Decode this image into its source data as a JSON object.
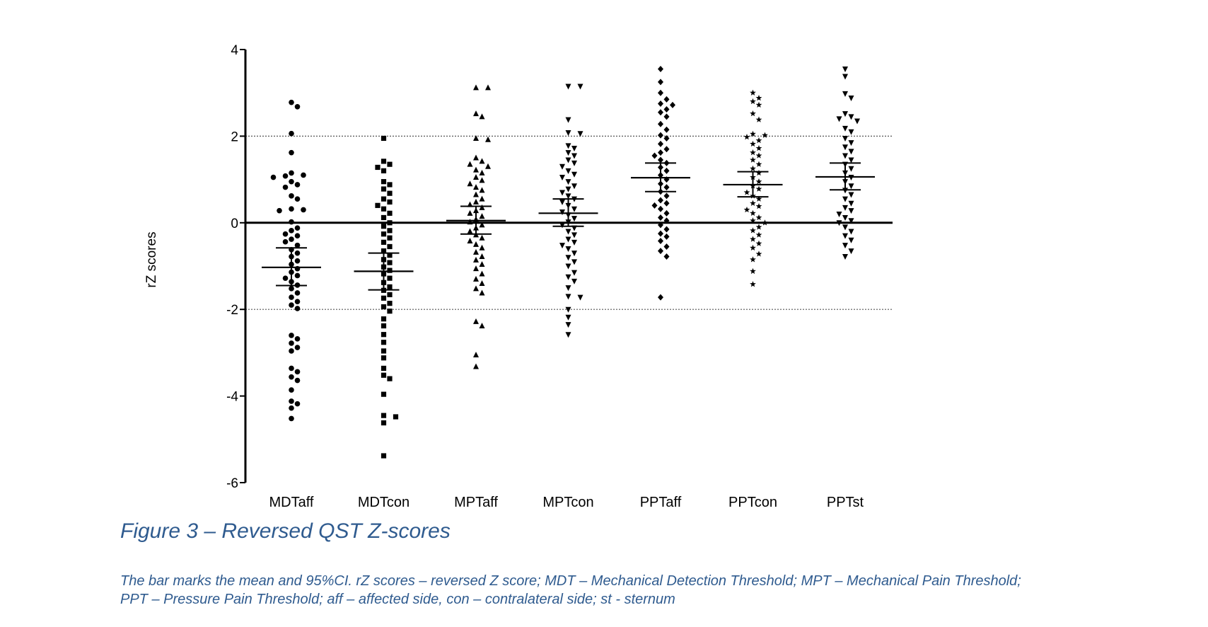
{
  "figure": {
    "title": "Figure 3 – Reversed QST Z-scores",
    "caption_line1": "The bar marks the mean and 95%CI. rZ scores – reversed Z score; MDT – Mechanical Detection Threshold; MPT – Mechanical Pain Threshold;",
    "caption_line2": "PPT – Pressure Pain Threshold; aff – affected side, con – contralateral side; st - sternum"
  },
  "chart_data": {
    "type": "scatter",
    "ylabel": "rZ scores",
    "ylim": [
      -6,
      4
    ],
    "yticks": [
      4,
      2,
      0,
      -2,
      -4,
      -6
    ],
    "reference_lines": {
      "solid": [
        0
      ],
      "dotted": [
        2,
        -2
      ]
    },
    "categories": [
      "MDTaff",
      "MDTcon",
      "MPTaff",
      "MPTcon",
      "PPTaff",
      "PPTcon",
      "PPTst"
    ],
    "marker_color": "#000000",
    "series": [
      {
        "category": "MDTaff",
        "marker": "circle",
        "mean": -1.03,
        "ci": [
          -1.45,
          -0.58
        ],
        "values": [
          2.78,
          2.68,
          2.06,
          1.62,
          1.15,
          1.1,
          1.08,
          1.05,
          0.95,
          0.88,
          0.82,
          0.62,
          0.55,
          0.32,
          0.3,
          0.28,
          0.02,
          -0.12,
          -0.18,
          -0.26,
          -0.3,
          -0.38,
          -0.44,
          -0.52,
          -0.62,
          -0.7,
          -0.78,
          -0.88,
          -0.96,
          -1.06,
          -1.14,
          -1.22,
          -1.28,
          -1.36,
          -1.44,
          -1.52,
          -1.62,
          -1.72,
          -1.82,
          -1.9,
          -1.98,
          -2.6,
          -2.68,
          -2.78,
          -2.88,
          -2.96,
          -3.36,
          -3.44,
          -3.56,
          -3.64,
          -3.86,
          -4.12,
          -4.18,
          -4.28,
          -4.52
        ]
      },
      {
        "category": "MDTcon",
        "marker": "square",
        "mean": -1.12,
        "ci": [
          -1.55,
          -0.7
        ],
        "values": [
          1.95,
          1.42,
          1.35,
          1.28,
          1.2,
          0.95,
          0.88,
          0.78,
          0.68,
          0.55,
          0.48,
          0.4,
          0.32,
          0.22,
          0.12,
          0.0,
          -0.08,
          -0.18,
          -0.26,
          -0.35,
          -0.45,
          -0.55,
          -0.65,
          -0.75,
          -0.85,
          -0.92,
          -1.02,
          -1.1,
          -1.18,
          -1.28,
          -1.38,
          -1.48,
          -1.56,
          -1.66,
          -1.74,
          -1.86,
          -1.94,
          -2.04,
          -2.22,
          -2.38,
          -2.58,
          -2.76,
          -2.96,
          -3.12,
          -3.36,
          -3.52,
          -3.6,
          -3.96,
          -4.45,
          -4.48,
          -4.62,
          -5.38
        ]
      },
      {
        "category": "MPTaff",
        "marker": "triangle-up",
        "mean": 0.05,
        "ci": [
          -0.26,
          0.38
        ],
        "values": [
          3.12,
          3.12,
          2.52,
          2.45,
          1.95,
          1.92,
          1.5,
          1.42,
          1.35,
          1.3,
          1.22,
          1.15,
          1.05,
          0.98,
          0.9,
          0.82,
          0.75,
          0.65,
          0.55,
          0.48,
          0.42,
          0.35,
          0.28,
          0.22,
          0.15,
          0.08,
          0.02,
          -0.05,
          -0.12,
          -0.2,
          -0.28,
          -0.35,
          -0.42,
          -0.5,
          -0.58,
          -0.68,
          -0.78,
          -0.86,
          -0.96,
          -1.06,
          -1.18,
          -1.3,
          -1.4,
          -1.52,
          -1.62,
          -2.28,
          -2.38,
          -3.05,
          -3.32
        ]
      },
      {
        "category": "MPTcon",
        "marker": "triangle-down",
        "mean": 0.22,
        "ci": [
          -0.08,
          0.55
        ],
        "values": [
          3.15,
          3.15,
          2.38,
          2.08,
          2.06,
          1.78,
          1.72,
          1.62,
          1.55,
          1.45,
          1.38,
          1.3,
          1.2,
          1.12,
          1.05,
          0.95,
          0.85,
          0.78,
          0.7,
          0.62,
          0.55,
          0.48,
          0.4,
          0.32,
          0.25,
          0.18,
          0.1,
          0.02,
          -0.05,
          -0.12,
          -0.2,
          -0.28,
          -0.38,
          -0.45,
          -0.52,
          -0.6,
          -0.7,
          -0.8,
          -0.9,
          -1.0,
          -1.15,
          -1.25,
          -1.35,
          -1.5,
          -1.7,
          -1.72,
          -2.0,
          -2.18,
          -2.35,
          -2.58
        ]
      },
      {
        "category": "PPTaff",
        "marker": "diamond",
        "mean": 1.04,
        "ci": [
          0.72,
          1.38
        ],
        "values": [
          3.55,
          3.25,
          3.0,
          2.85,
          2.75,
          2.72,
          2.62,
          2.55,
          2.45,
          2.28,
          2.15,
          2.02,
          1.95,
          1.82,
          1.7,
          1.62,
          1.55,
          1.45,
          1.38,
          1.28,
          1.2,
          1.1,
          1.0,
          0.9,
          0.82,
          0.72,
          0.62,
          0.52,
          0.45,
          0.4,
          0.32,
          0.22,
          0.12,
          0.05,
          -0.05,
          -0.15,
          -0.25,
          -0.32,
          -0.42,
          -0.55,
          -0.65,
          -0.78,
          -1.72
        ]
      },
      {
        "category": "PPTcon",
        "marker": "star",
        "mean": 0.88,
        "ci": [
          0.6,
          1.18
        ],
        "values": [
          3.0,
          2.88,
          2.8,
          2.72,
          2.52,
          2.38,
          2.05,
          2.02,
          1.98,
          1.9,
          1.82,
          1.72,
          1.62,
          1.55,
          1.45,
          1.35,
          1.25,
          1.15,
          1.05,
          0.95,
          0.85,
          0.78,
          0.7,
          0.62,
          0.55,
          0.45,
          0.38,
          0.3,
          0.22,
          0.12,
          0.05,
          0.0,
          -0.1,
          -0.18,
          -0.28,
          -0.38,
          -0.48,
          -0.58,
          -0.72,
          -0.85,
          -1.12,
          -1.42
        ]
      },
      {
        "category": "PPTst",
        "marker": "triangle-down",
        "mean": 1.06,
        "ci": [
          0.76,
          1.38
        ],
        "values": [
          3.55,
          3.38,
          2.98,
          2.88,
          2.52,
          2.45,
          2.4,
          2.35,
          2.18,
          2.1,
          1.95,
          1.85,
          1.75,
          1.65,
          1.55,
          1.45,
          1.35,
          1.25,
          1.15,
          1.05,
          0.95,
          0.85,
          0.75,
          0.65,
          0.55,
          0.45,
          0.35,
          0.28,
          0.2,
          0.12,
          0.05,
          0.0,
          -0.1,
          -0.2,
          -0.3,
          -0.4,
          -0.52,
          -0.65,
          -0.78
        ]
      }
    ]
  }
}
